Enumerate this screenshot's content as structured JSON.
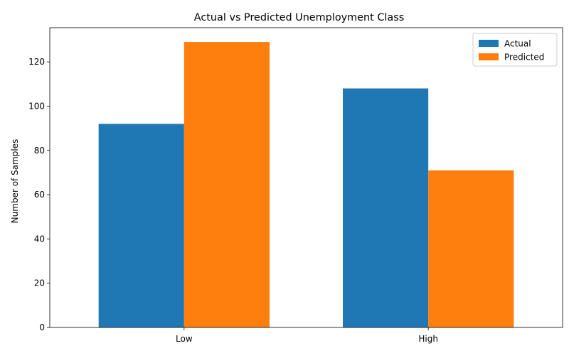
{
  "chart_data": {
    "type": "bar",
    "title": "Actual vs Predicted Unemployment Class",
    "xlabel": "",
    "ylabel": "Number of Samples",
    "categories": [
      "Low",
      "High"
    ],
    "series": [
      {
        "name": "Actual",
        "values": [
          92,
          108
        ],
        "color": "#1f77b4"
      },
      {
        "name": "Predicted",
        "values": [
          129,
          71
        ],
        "color": "#ff7f0e"
      }
    ],
    "ylim": [
      0,
      135.45
    ],
    "yticks": [
      0,
      20,
      40,
      60,
      80,
      100,
      120
    ],
    "grid": false,
    "legend_position": "top-right"
  }
}
